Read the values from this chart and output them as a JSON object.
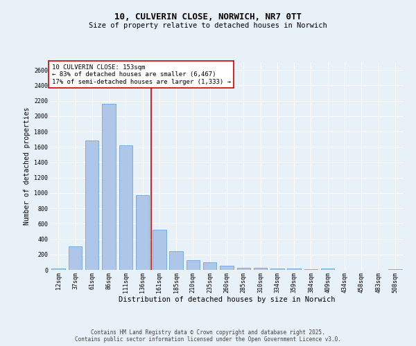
{
  "title": "10, CULVERIN CLOSE, NORWICH, NR7 0TT",
  "subtitle": "Size of property relative to detached houses in Norwich",
  "xlabel": "Distribution of detached houses by size in Norwich",
  "ylabel": "Number of detached properties",
  "categories": [
    "12sqm",
    "37sqm",
    "61sqm",
    "86sqm",
    "111sqm",
    "136sqm",
    "161sqm",
    "185sqm",
    "210sqm",
    "235sqm",
    "260sqm",
    "285sqm",
    "310sqm",
    "334sqm",
    "359sqm",
    "384sqm",
    "409sqm",
    "434sqm",
    "458sqm",
    "483sqm",
    "508sqm"
  ],
  "values": [
    15,
    305,
    1680,
    2160,
    1620,
    970,
    520,
    240,
    130,
    95,
    50,
    30,
    30,
    20,
    15,
    5,
    15,
    2,
    2,
    2,
    10
  ],
  "bar_color": "#aec6e8",
  "bar_edge_color": "#5b9bd5",
  "vline_x_idx": 5.5,
  "vline_color": "#cc0000",
  "annotation_text": "10 CULVERIN CLOSE: 153sqm\n← 83% of detached houses are smaller (6,467)\n17% of semi-detached houses are larger (1,333) →",
  "annotation_box_color": "#ffffff",
  "annotation_box_edge": "#cc0000",
  "ylim": [
    0,
    2700
  ],
  "yticks": [
    0,
    200,
    400,
    600,
    800,
    1000,
    1200,
    1400,
    1600,
    1800,
    2000,
    2200,
    2400,
    2600
  ],
  "background_color": "#e8f0f8",
  "plot_bg_color": "#e8f0f8",
  "footer": "Contains HM Land Registry data © Crown copyright and database right 2025.\nContains public sector information licensed under the Open Government Licence v3.0.",
  "title_fontsize": 9,
  "subtitle_fontsize": 7.5,
  "axis_label_fontsize": 7,
  "tick_fontsize": 6,
  "annotation_fontsize": 6.5,
  "footer_fontsize": 5.5,
  "grid_color": "#ffffff",
  "grid_linewidth": 0.8
}
